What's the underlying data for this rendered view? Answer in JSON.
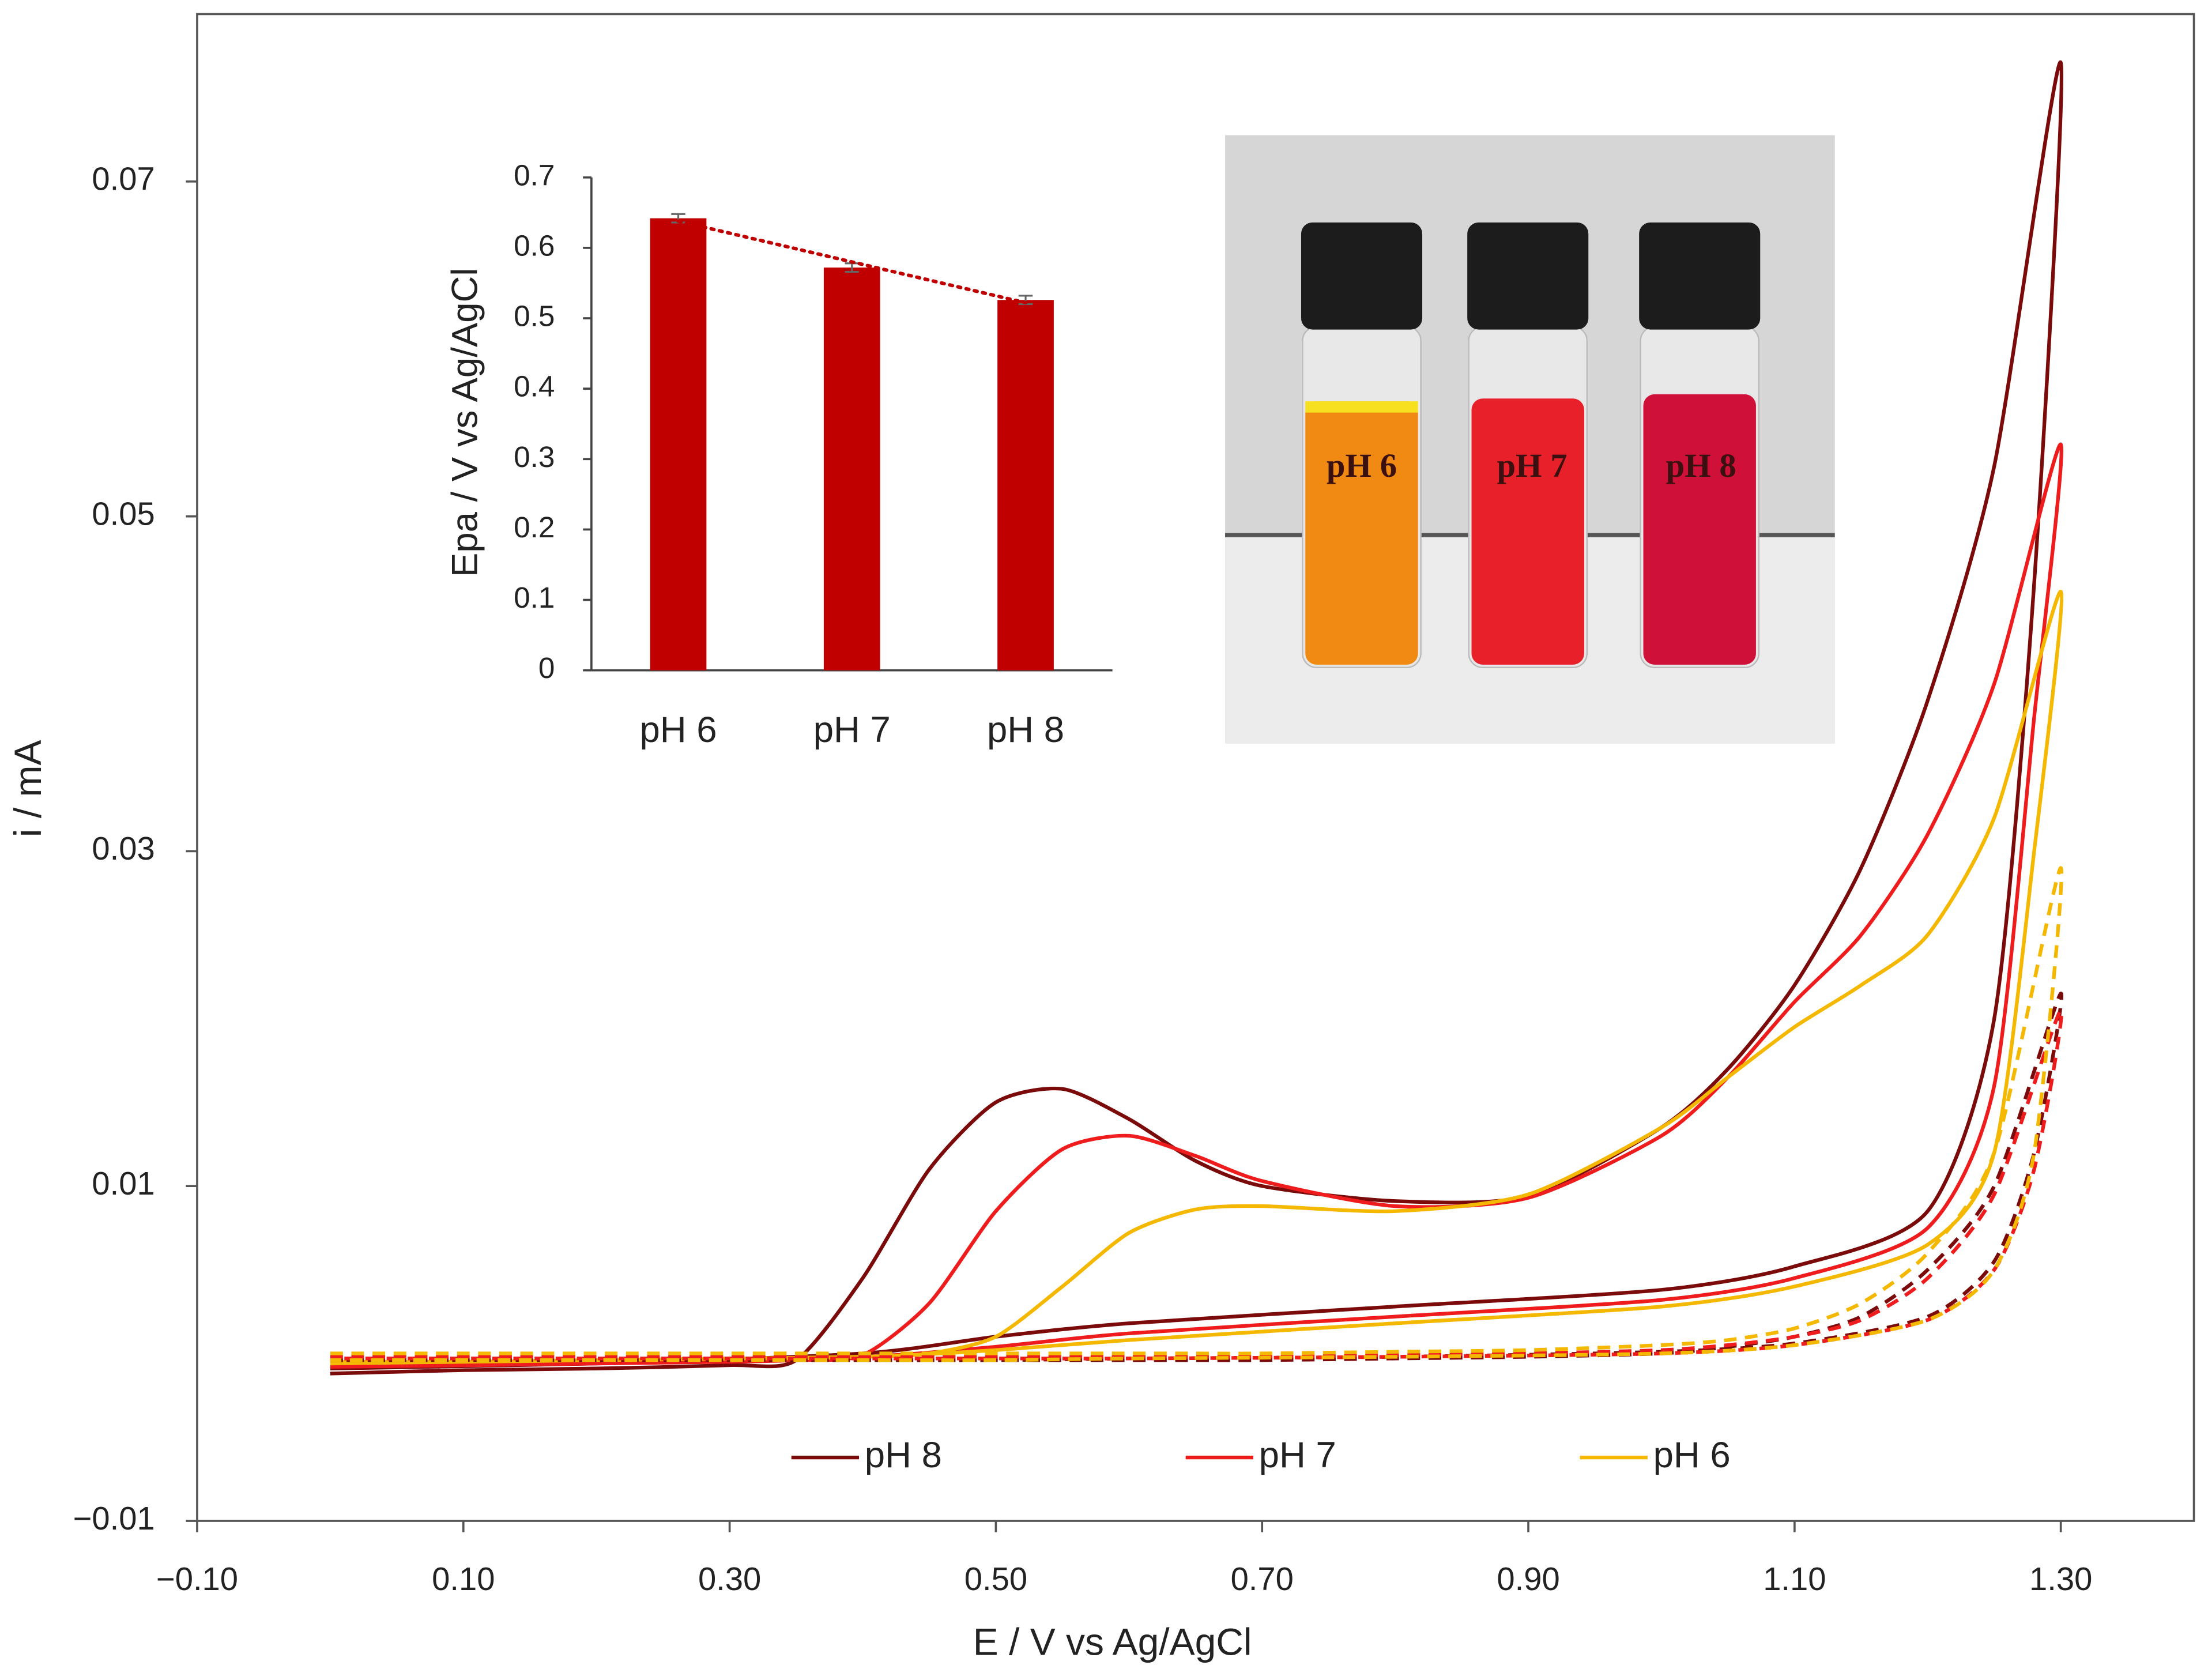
{
  "chart_data": [
    {
      "type": "line",
      "xlabel": "E / V vs Ag/AgCl",
      "ylabel": "i / mA",
      "x": [
        0,
        0.1,
        0.2,
        0.3,
        0.35,
        0.4,
        0.45,
        0.5,
        0.55,
        0.6,
        0.65,
        0.7,
        0.8,
        0.9,
        1.0,
        1.05,
        1.1,
        1.15,
        1.2,
        1.25,
        1.3,
        1.28,
        1.25,
        1.2,
        1.1,
        1.0,
        0.8,
        0.6,
        0.5,
        0.4,
        0.2,
        0
      ],
      "series": [
        {
          "name": "pH 8",
          "color": "#7b0a0a",
          "dash": false,
          "values": [
            -0.0012,
            -0.001,
            -0.0009,
            -0.0007,
            -0.0004,
            0.0045,
            0.011,
            0.015,
            0.0158,
            0.014,
            0.0115,
            0.01,
            0.0091,
            0.0094,
            0.0135,
            0.017,
            0.022,
            0.029,
            0.039,
            0.053,
            0.0771,
            0.046,
            0.02,
            0.0085,
            0.0052,
            0.0038,
            0.0028,
            0.0018,
            0.001,
            0,
            -0.0006,
            -0.0009
          ]
        },
        {
          "name": "pH 7",
          "color": "#ee1c1c",
          "dash": false,
          "values": [
            -0.0008,
            -0.0007,
            -0.0006,
            -0.0005,
            -0.0004,
            -0.0001,
            0.003,
            0.0085,
            0.0122,
            0.013,
            0.0118,
            0.0103,
            0.0088,
            0.0093,
            0.013,
            0.0165,
            0.021,
            0.025,
            0.031,
            0.04,
            0.0543,
            0.038,
            0.016,
            0.0075,
            0.0045,
            0.0032,
            0.0022,
            0.0012,
            0.0004,
            -0.0002,
            -0.0006,
            -0.0008
          ]
        },
        {
          "name": "pH 6",
          "color": "#f5b800",
          "dash": false,
          "values": [
            -0.0005,
            -0.0005,
            -0.0004,
            -0.0003,
            -0.0003,
            -0.0002,
            0,
            0.001,
            0.004,
            0.0072,
            0.0086,
            0.0088,
            0.0085,
            0.0095,
            0.0135,
            0.0165,
            0.0195,
            0.022,
            0.025,
            0.032,
            0.0455,
            0.03,
            0.012,
            0.0065,
            0.004,
            0.0028,
            0.0018,
            0.0008,
            0.0002,
            -0.0002,
            -0.0004,
            -0.0006
          ]
        },
        {
          "color": "#7b0a0a",
          "dash": true,
          "values": [
            -0.0004,
            -0.0004,
            -0.0004,
            -0.0004,
            -0.0004,
            -0.0004,
            -0.0004,
            -0.0004,
            -0.0004,
            -0.0004,
            -0.0004,
            -0.0004,
            -0.0003,
            -0.0002,
            0,
            0.0004,
            0.001,
            0.0022,
            0.005,
            0.01,
            0.0215,
            0.012,
            0.0055,
            0.0022,
            0.0006,
            0.0001,
            -0.0002,
            -0.0003,
            -0.0004,
            -0.0004,
            -0.0004,
            -0.0004
          ]
        },
        {
          "color": "#ee1c1c",
          "dash": true,
          "values": [
            -0.0002,
            -0.0002,
            -0.0002,
            -0.0002,
            -0.0002,
            -0.0002,
            -0.0002,
            -0.0002,
            -0.0002,
            -0.0002,
            -0.0002,
            -0.0002,
            -0.0001,
            0,
            0.0002,
            0.0005,
            0.001,
            0.002,
            0.0045,
            0.0095,
            0.0205,
            0.011,
            0.005,
            0.002,
            0.0005,
            0,
            -0.0002,
            -0.0003,
            -0.0003,
            -0.0003,
            -0.0003,
            -0.0003
          ]
        },
        {
          "color": "#f5b800",
          "dash": true,
          "values": [
            0,
            0,
            0,
            0,
            0,
            0,
            0,
            0,
            0,
            0,
            0,
            0,
            0.0001,
            0.0002,
            0.0005,
            0.0008,
            0.0015,
            0.003,
            0.006,
            0.012,
            0.029,
            0.012,
            0.005,
            0.002,
            0.0005,
            0,
            -0.0002,
            -0.0003,
            -0.0004,
            -0.0004,
            -0.0004,
            -0.0004
          ]
        }
      ],
      "xlim": [
        -0.1,
        1.4
      ],
      "xticks": [
        {
          "value": -0.1,
          "label": "−0.10"
        },
        {
          "value": 0.1,
          "label": "0.10"
        },
        {
          "value": 0.3,
          "label": "0.30"
        },
        {
          "value": 0.5,
          "label": "0.50"
        },
        {
          "value": 0.7,
          "label": "0.70"
        },
        {
          "value": 0.9,
          "label": "0.90"
        },
        {
          "value": 1.1,
          "label": "1.10"
        },
        {
          "value": 1.3,
          "label": "1.30"
        }
      ],
      "ylim": [
        -0.01,
        0.08
      ],
      "yticks": [
        {
          "value": -0.01,
          "label": "−0.01"
        },
        0.01,
        0.03,
        0.05,
        0.07
      ],
      "grid": false,
      "legend": "bottom"
    },
    {
      "type": "bar",
      "ylabel": "Epa / V vs Ag/AgCl",
      "categories": [
        "pH 6",
        "pH 7",
        "pH 8"
      ],
      "values": [
        0.642,
        0.572,
        0.526
      ],
      "errors": [
        0.006,
        0.006,
        0.006
      ],
      "color": "#c00000",
      "trendline": true,
      "ylim": [
        0,
        0.7
      ],
      "yticks": [
        0,
        0.1,
        0.2,
        0.3,
        0.4,
        0.5,
        0.6,
        0.7
      ],
      "grid": false
    }
  ],
  "photo": {
    "labels": [
      "pH 6",
      "pH 7",
      "pH 8"
    ]
  }
}
